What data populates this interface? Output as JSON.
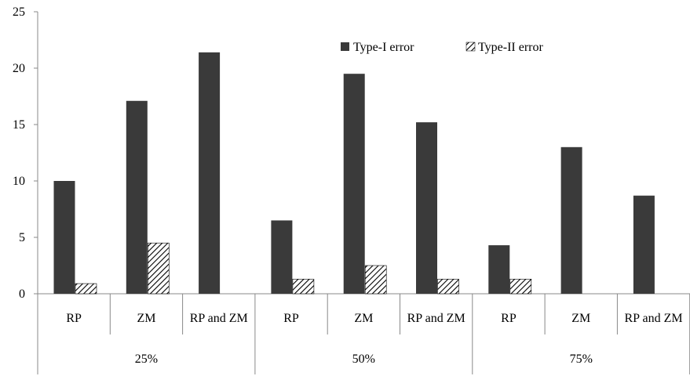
{
  "chart_data": {
    "type": "bar",
    "groups": [
      {
        "label": "25%",
        "categories": [
          "RP",
          "ZM",
          "RP and ZM"
        ]
      },
      {
        "label": "50%",
        "categories": [
          "RP",
          "ZM",
          "RP and ZM"
        ]
      },
      {
        "label": "75%",
        "categories": [
          "RP",
          "ZM",
          "RP and ZM"
        ]
      }
    ],
    "series": [
      {
        "name": "Type-I  error",
        "values": [
          10.0,
          17.1,
          21.4,
          6.5,
          19.5,
          15.2,
          4.3,
          13.0,
          8.7
        ],
        "color": "#3a3a3a",
        "pattern": "solid"
      },
      {
        "name": "Type-II  error",
        "values": [
          0.9,
          4.5,
          0,
          1.3,
          2.5,
          1.3,
          1.3,
          0,
          0
        ],
        "color": "#000000",
        "pattern": "hatch"
      }
    ],
    "ylim": [
      0,
      25
    ],
    "yticks": [
      "0",
      "5",
      "10",
      "15",
      "20",
      "25"
    ],
    "grid": false,
    "legend_position": "top-right"
  }
}
